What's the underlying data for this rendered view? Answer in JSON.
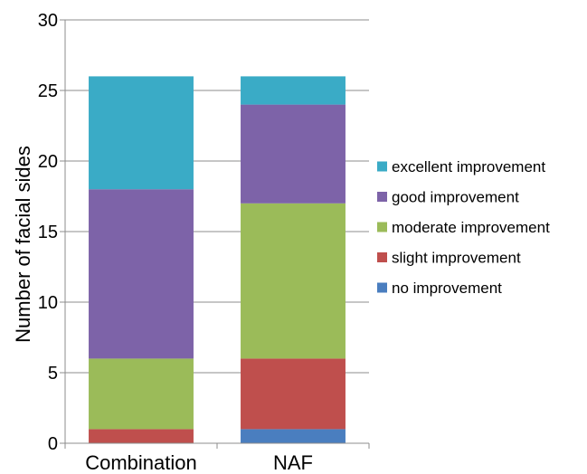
{
  "chart_data": {
    "type": "bar",
    "stacked": true,
    "categories": [
      "Combination",
      "NAF"
    ],
    "series": [
      {
        "name": "no improvement",
        "color": "#4a7ebf",
        "values": [
          0,
          1
        ]
      },
      {
        "name": "slight improvement",
        "color": "#bf4f4d",
        "values": [
          1,
          5
        ]
      },
      {
        "name": "moderate improvement",
        "color": "#9bbb59",
        "values": [
          5,
          11
        ]
      },
      {
        "name": "good improvement",
        "color": "#7d63a8",
        "values": [
          12,
          7
        ]
      },
      {
        "name": "excellent improvement",
        "color": "#3aabc6",
        "values": [
          8,
          2
        ]
      }
    ],
    "ylabel": "Number of facial sides",
    "xlabel": "",
    "ylim": [
      0,
      30
    ],
    "yticks": [
      0,
      5,
      10,
      15,
      20,
      25,
      30
    ],
    "grid": true,
    "legend_position": "right",
    "legend_order": [
      "excellent improvement",
      "good improvement",
      "moderate improvement",
      "slight improvement",
      "no improvement"
    ]
  }
}
